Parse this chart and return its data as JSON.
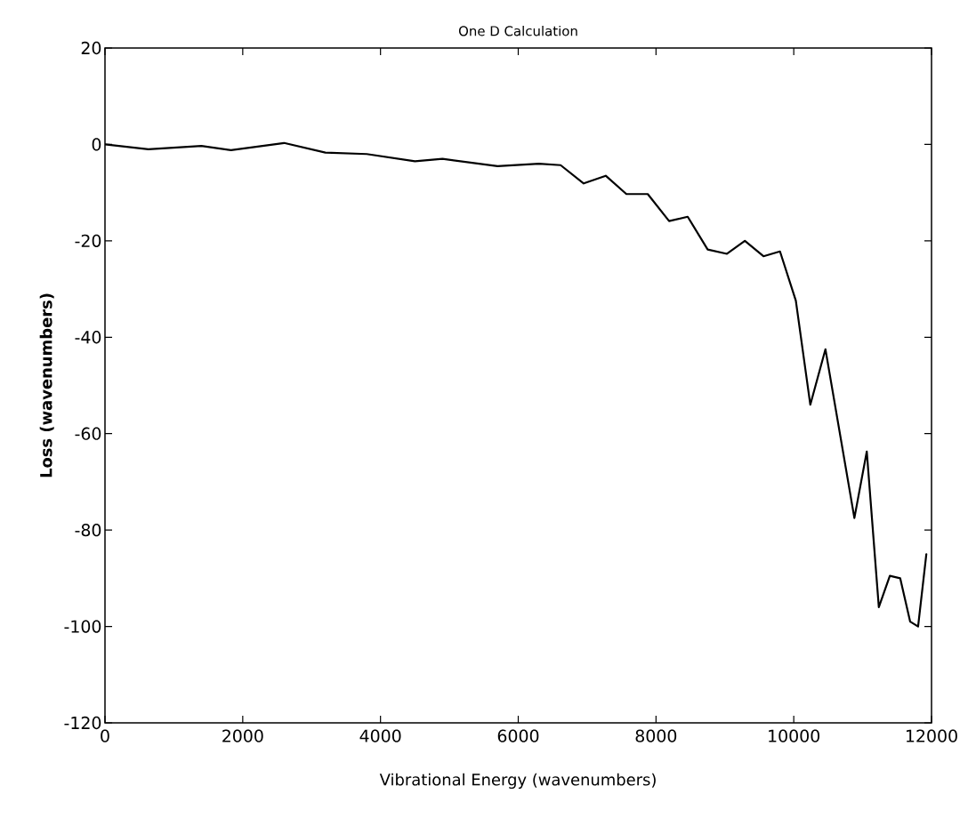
{
  "chart_data": {
    "type": "line",
    "title": "One D Calculation",
    "xlabel": "Vibrational Energy (wavenumbers)",
    "ylabel": "Loss (wavenumbers)",
    "x": [
      0,
      630,
      1400,
      1830,
      2600,
      3200,
      3800,
      4500,
      4900,
      5700,
      6300,
      6615,
      6950,
      7270,
      7570,
      7880,
      8190,
      8460,
      8750,
      9030,
      9290,
      9560,
      9800,
      10030,
      10240,
      10460,
      10880,
      11060,
      11235,
      11395,
      11545,
      11690,
      11805,
      11925
    ],
    "series": [
      {
        "color": "#000000",
        "values": [
          0,
          -1,
          -0.3,
          -1.2,
          0.3,
          -1.7,
          -2,
          -3.5,
          -3,
          -4.5,
          -4,
          -4.3,
          -8.1,
          -6.5,
          -10.3,
          -10.3,
          -15.9,
          -15,
          -21.8,
          -22.7,
          -20,
          -23.2,
          -22.2,
          -32.4,
          -54,
          -42.5,
          -77.5,
          -63.7,
          -96,
          -89.5,
          -90,
          -99,
          -100,
          -85
        ]
      }
    ],
    "xlim": [
      0,
      12000
    ],
    "ylim": [
      -120,
      20
    ],
    "xticks": [
      0,
      2000,
      4000,
      6000,
      8000,
      10000,
      12000
    ],
    "yticks": [
      -120,
      -100,
      -80,
      -60,
      -40,
      -20,
      0,
      20
    ],
    "marker": "none",
    "line_style": "solid"
  }
}
